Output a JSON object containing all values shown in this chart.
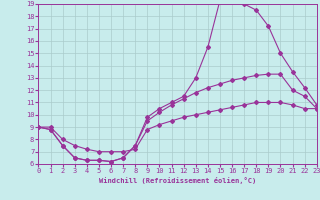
{
  "xlabel": "Windchill (Refroidissement éolien,°C)",
  "bg_color": "#c8ecec",
  "line_color": "#993399",
  "grid_color": "#aacccc",
  "xmin": 0,
  "xmax": 23,
  "ymin": 6,
  "ymax": 19,
  "xticks": [
    0,
    1,
    2,
    3,
    4,
    5,
    6,
    7,
    8,
    9,
    10,
    11,
    12,
    13,
    14,
    15,
    16,
    17,
    18,
    19,
    20,
    21,
    22,
    23
  ],
  "yticks": [
    6,
    7,
    8,
    9,
    10,
    11,
    12,
    13,
    14,
    15,
    16,
    17,
    18,
    19
  ],
  "line1_x": [
    0,
    1,
    2,
    3,
    4,
    5,
    6,
    7,
    8,
    9,
    10,
    11,
    12,
    13,
    14,
    15,
    16,
    17,
    18,
    19,
    20,
    21,
    22,
    23
  ],
  "line1_y": [
    9.0,
    8.8,
    7.5,
    6.5,
    6.3,
    6.3,
    6.2,
    6.5,
    7.5,
    9.8,
    10.5,
    11.0,
    11.5,
    13.0,
    15.5,
    19.3,
    19.3,
    19.0,
    18.5,
    17.2,
    15.0,
    13.5,
    12.2,
    10.8
  ],
  "line2_x": [
    0,
    1,
    2,
    3,
    4,
    5,
    6,
    7,
    8,
    9,
    10,
    11,
    12,
    13,
    14,
    15,
    16,
    17,
    18,
    19,
    20,
    21,
    22,
    23
  ],
  "line2_y": [
    9.0,
    8.8,
    7.5,
    6.5,
    6.3,
    6.3,
    6.2,
    6.5,
    7.5,
    9.5,
    10.2,
    10.8,
    11.3,
    11.8,
    12.2,
    12.5,
    12.8,
    13.0,
    13.2,
    13.3,
    13.3,
    12.0,
    11.5,
    10.5
  ],
  "line3_x": [
    0,
    1,
    2,
    3,
    4,
    5,
    6,
    7,
    8,
    9,
    10,
    11,
    12,
    13,
    14,
    15,
    16,
    17,
    18,
    19,
    20,
    21,
    22,
    23
  ],
  "line3_y": [
    9.0,
    9.0,
    8.0,
    7.5,
    7.2,
    7.0,
    7.0,
    7.0,
    7.2,
    8.8,
    9.2,
    9.5,
    9.8,
    10.0,
    10.2,
    10.4,
    10.6,
    10.8,
    11.0,
    11.0,
    11.0,
    10.8,
    10.5,
    10.5
  ]
}
